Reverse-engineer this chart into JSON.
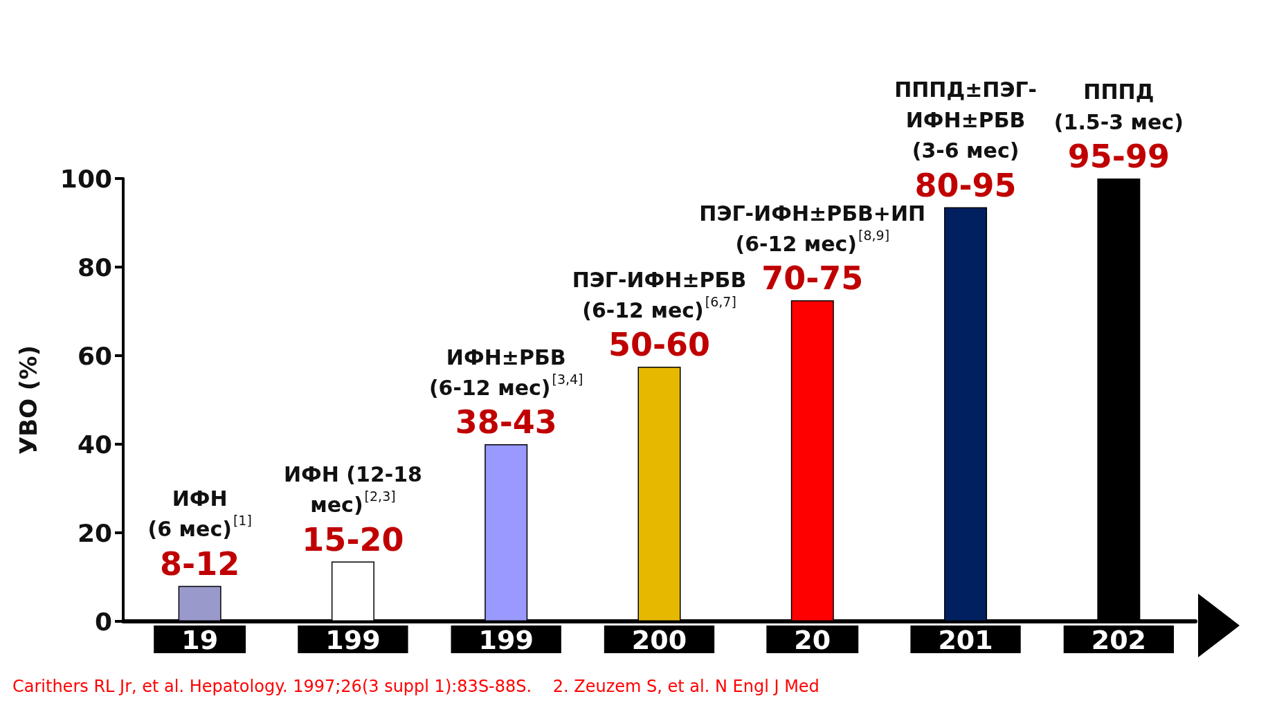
{
  "chart_data": {
    "type": "bar",
    "ylabel": "УВО (%)",
    "categories": [
      "19",
      "199",
      "199",
      "200",
      "20",
      "201",
      "202"
    ],
    "values": [
      8,
      13.5,
      40,
      57.5,
      72.5,
      93.5,
      100
    ],
    "colors": [
      "#9999cc",
      "#ffffff",
      "#9999ff",
      "#e6b800",
      "#ff0000",
      "#002060",
      "#000000"
    ],
    "value_labels": [
      "8-12",
      "15-20",
      "38-43",
      "50-60",
      "70-75",
      "80-95",
      "95-99"
    ],
    "ylim": [
      0,
      100
    ],
    "yticks": [
      0,
      20,
      40,
      60,
      80,
      100
    ],
    "grid": false,
    "annotations": [
      "ИФН\n(6 мес)$^{[1]}$",
      "ИФН (12-18\nмес)$^{[2,3]}$",
      "ИФН±РБВ\n(6-12 мес)$^{[3,4]}$",
      "ПЭГ-ИФН±РБВ\n(6-12 мес)$^{[6,7]}$",
      "ПЭГ-ИФН±РБВ+ИП\n(6-12 мес)$^{[8,9]}$",
      "ПППД±ПЭГ-\nИФН±РБВ\n(3-6 мес)",
      "ПППД\n(1.5-3 мес)",
      "Carithers RL Jr, et al. Hepatology. 1997;26(3 suppl 1):83S-88S.    2. Zeuzem S, et al. N Engl J Med"
    ]
  }
}
